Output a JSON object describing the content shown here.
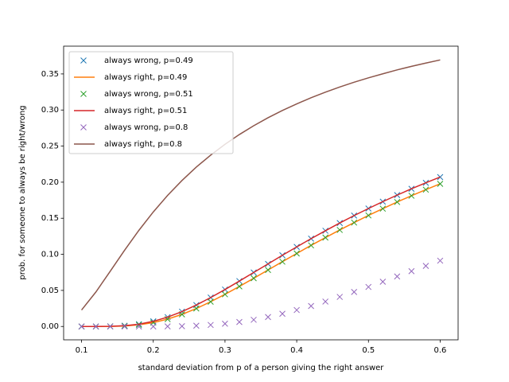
{
  "chart_data": {
    "type": "line",
    "x_label": "standard deviation from p of a person giving the right answer",
    "y_label": "prob. for someone to always be right/wrong",
    "x": [
      0.1,
      0.12,
      0.14,
      0.16,
      0.18,
      0.2,
      0.22,
      0.24,
      0.26,
      0.28,
      0.3,
      0.32,
      0.34,
      0.36,
      0.38,
      0.4,
      0.42,
      0.44,
      0.46,
      0.48,
      0.5,
      0.52,
      0.54,
      0.56,
      0.58,
      0.6
    ],
    "series": [
      {
        "name": "always wrong, p=0.49",
        "color": "#1f77b4",
        "style": "x",
        "values": [
          0.0,
          0.0,
          0.0002,
          0.0011,
          0.0032,
          0.0071,
          0.013,
          0.0206,
          0.0297,
          0.0401,
          0.0512,
          0.0629,
          0.0748,
          0.0867,
          0.0987,
          0.1103,
          0.1217,
          0.1327,
          0.1434,
          0.1537,
          0.1635,
          0.173,
          0.1821,
          0.1908,
          0.1991,
          0.2071
        ]
      },
      {
        "name": "always right, p=0.49",
        "color": "#ff7f0e",
        "style": "line",
        "values": [
          0.0,
          0.0,
          0.0001,
          0.0007,
          0.0023,
          0.0054,
          0.0102,
          0.0168,
          0.0249,
          0.0343,
          0.0446,
          0.0555,
          0.0668,
          0.0783,
          0.0898,
          0.1012,
          0.1124,
          0.1232,
          0.1338,
          0.144,
          0.1539,
          0.1633,
          0.1725,
          0.1812,
          0.1896,
          0.1977
        ]
      },
      {
        "name": "always wrong, p=0.51",
        "color": "#2ca02c",
        "style": "x",
        "values": [
          0.0,
          0.0,
          0.0001,
          0.0007,
          0.0023,
          0.0054,
          0.0102,
          0.0168,
          0.0249,
          0.0343,
          0.0446,
          0.0555,
          0.0668,
          0.0783,
          0.0898,
          0.1012,
          0.1124,
          0.1232,
          0.1338,
          0.144,
          0.1539,
          0.1633,
          0.1725,
          0.1812,
          0.1896,
          0.1977
        ]
      },
      {
        "name": "always right, p=0.51",
        "color": "#d62728",
        "style": "line",
        "values": [
          0.0,
          0.0,
          0.0002,
          0.0011,
          0.0032,
          0.0071,
          0.013,
          0.0206,
          0.0297,
          0.0401,
          0.0512,
          0.0629,
          0.0748,
          0.0867,
          0.0987,
          0.1103,
          0.1217,
          0.1327,
          0.1434,
          0.1537,
          0.1635,
          0.173,
          0.1821,
          0.1908,
          0.1991,
          0.2071
        ]
      },
      {
        "name": "always wrong, p=0.8",
        "color": "#9467bd",
        "style": "x",
        "values": [
          0.0,
          0.0,
          0.0,
          0.0,
          0.0,
          0.0,
          0.0001,
          0.0004,
          0.0011,
          0.0021,
          0.0038,
          0.0062,
          0.0093,
          0.0131,
          0.0176,
          0.0228,
          0.0284,
          0.0345,
          0.041,
          0.0478,
          0.0548,
          0.062,
          0.0693,
          0.0766,
          0.0839,
          0.0912
        ]
      },
      {
        "name": "always right, p=0.8",
        "color": "#8c564b",
        "style": "line",
        "values": [
          0.0228,
          0.0478,
          0.0766,
          0.1056,
          0.1333,
          0.1587,
          0.1817,
          0.2023,
          0.2209,
          0.2375,
          0.2525,
          0.266,
          0.2782,
          0.2893,
          0.2994,
          0.3085,
          0.317,
          0.3247,
          0.3319,
          0.3385,
          0.3446,
          0.3502,
          0.3556,
          0.3605,
          0.3651,
          0.3694
        ]
      }
    ],
    "xlim": [
      0.075,
      0.625
    ],
    "xticks": [
      0.1,
      0.2,
      0.3,
      0.4,
      0.5,
      0.6
    ],
    "ylim": [
      -0.0185,
      0.3885
    ],
    "yticks": [
      {
        "value": 0,
        "label": "0.00"
      },
      {
        "value": 0.05,
        "label": "0.05"
      },
      {
        "value": 0.1,
        "label": "0.10"
      },
      {
        "value": 0.15,
        "label": "0.15"
      },
      {
        "value": 0.2,
        "label": "0.20"
      },
      {
        "value": 0.25,
        "label": "0.25"
      },
      {
        "value": 0.3,
        "label": "0.30"
      },
      {
        "value": 0.35,
        "label": "0.35"
      }
    ],
    "legend": "upper left",
    "grid": false
  }
}
